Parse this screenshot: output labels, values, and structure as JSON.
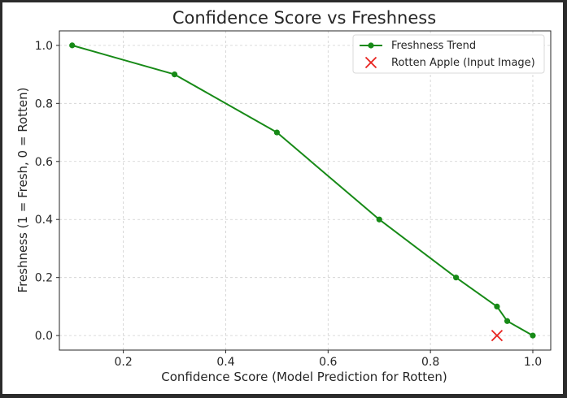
{
  "chart_data": {
    "type": "line",
    "title": "Confidence Score vs Freshness",
    "xlabel": "Confidence Score (Model Prediction for Rotten)",
    "ylabel": "Freshness (1 = Fresh, 0 = Rotten)",
    "xlim": [
      0.075,
      1.035
    ],
    "ylim": [
      -0.05,
      1.05
    ],
    "x_ticks": [
      0.2,
      0.4,
      0.6,
      0.8,
      1.0
    ],
    "x_tick_labels": [
      "0.2",
      "0.4",
      "0.6",
      "0.8",
      "1.0"
    ],
    "y_ticks": [
      0.0,
      0.2,
      0.4,
      0.6,
      0.8,
      1.0
    ],
    "y_tick_labels": [
      "0.0",
      "0.2",
      "0.4",
      "0.6",
      "0.8",
      "1.0"
    ],
    "grid": true,
    "legend_position": "top-right",
    "series": [
      {
        "name": "Freshness Trend",
        "type": "line",
        "marker": "circle",
        "color": "#178a17",
        "x": [
          0.1,
          0.3,
          0.5,
          0.7,
          0.85,
          0.93,
          0.95,
          1.0
        ],
        "y": [
          1.0,
          0.9,
          0.7,
          0.4,
          0.2,
          0.1,
          0.05,
          0.0
        ]
      },
      {
        "name": "Rotten Apple (Input Image)",
        "type": "scatter",
        "marker": "x",
        "color": "#e8231f",
        "x": [
          0.93
        ],
        "y": [
          0.0
        ]
      }
    ]
  }
}
